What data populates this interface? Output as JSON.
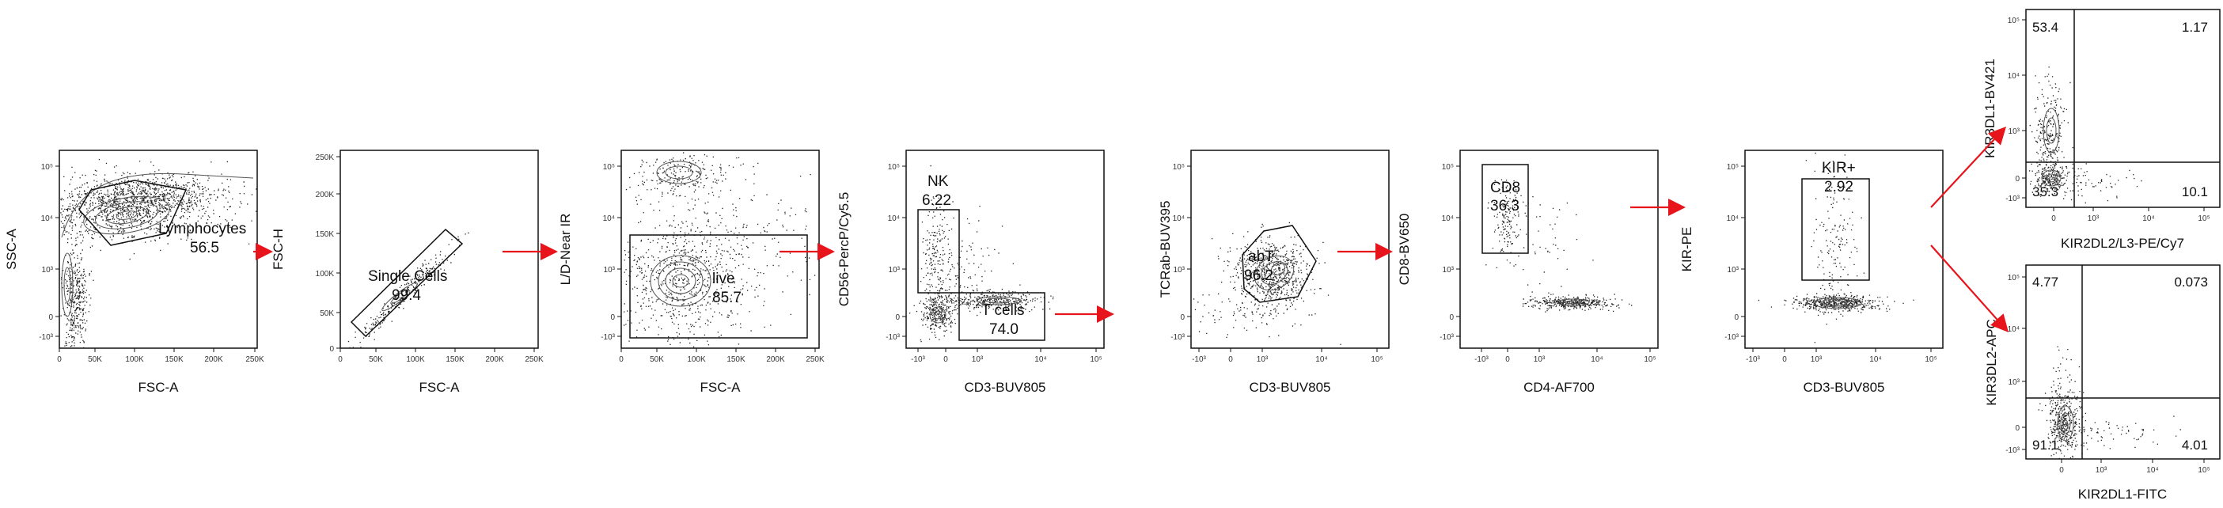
{
  "chart_data": [
    {
      "type": "scatter",
      "name": "lymphocytes",
      "xlabel": "FSC-A",
      "ylabel": "SSC-A",
      "x_ticks": [
        "0",
        "50K",
        "100K",
        "150K",
        "200K",
        "250K"
      ],
      "y_ticks": [
        "-10³",
        "0",
        "10³",
        "10⁴",
        "10⁵"
      ],
      "gates": [
        {
          "name": "Lymphocytes",
          "value": "56.5"
        }
      ]
    },
    {
      "type": "scatter",
      "name": "singlets",
      "xlabel": "FSC-A",
      "ylabel": "FSC-H",
      "x_ticks": [
        "0",
        "50K",
        "100K",
        "150K",
        "200K",
        "250K"
      ],
      "y_ticks": [
        "0",
        "50K",
        "100K",
        "150K",
        "200K",
        "250K"
      ],
      "gates": [
        {
          "name": "Single Cells",
          "value": "99.4"
        }
      ]
    },
    {
      "type": "scatter",
      "name": "live",
      "xlabel": "FSC-A",
      "ylabel": "L/D-Near IR",
      "x_ticks": [
        "0",
        "50K",
        "100K",
        "150K",
        "200K",
        "250K"
      ],
      "y_ticks": [
        "-10³",
        "0",
        "10³",
        "10⁴",
        "10⁵"
      ],
      "gates": [
        {
          "name": "live",
          "value": "85.7"
        }
      ]
    },
    {
      "type": "scatter",
      "name": "nk-tcells",
      "xlabel": "CD3-BUV805",
      "ylabel": "CD56-PercP/Cy5.5",
      "x_ticks": [
        "-10³",
        "0",
        "10³",
        "10⁴",
        "10⁵"
      ],
      "y_ticks": [
        "-10³",
        "0",
        "10³",
        "10⁴",
        "10⁵"
      ],
      "gates": [
        {
          "name": "NK",
          "value": "6.22"
        },
        {
          "name": "T cells",
          "value": "74.0"
        }
      ]
    },
    {
      "type": "scatter",
      "name": "abt",
      "xlabel": "CD3-BUV805",
      "ylabel": "TCRab-BUV395",
      "x_ticks": [
        "-10³",
        "0",
        "10³",
        "10⁴",
        "10⁵"
      ],
      "y_ticks": [
        "-10³",
        "0",
        "10³",
        "10⁴",
        "10⁵"
      ],
      "gates": [
        {
          "name": "abT",
          "value": "96.2"
        }
      ]
    },
    {
      "type": "scatter",
      "name": "cd8",
      "xlabel": "CD4-AF700",
      "ylabel": "CD8-BV650",
      "x_ticks": [
        "-10³",
        "0",
        "10³",
        "10⁴",
        "10⁵"
      ],
      "y_ticks": [
        "-10³",
        "0",
        "10³",
        "10⁴",
        "10⁵"
      ],
      "gates": [
        {
          "name": "CD8",
          "value": "36.3"
        }
      ]
    },
    {
      "type": "scatter",
      "name": "kir",
      "xlabel": "CD3-BUV805",
      "ylabel": "KIR-PE",
      "x_ticks": [
        "-10³",
        "0",
        "10³",
        "10⁴",
        "10⁵"
      ],
      "y_ticks": [
        "-10³",
        "0",
        "10³",
        "10⁴",
        "10⁵"
      ],
      "gates": [
        {
          "name": "KIR+",
          "value": "2.92"
        }
      ]
    },
    {
      "type": "scatter",
      "name": "kir3dl1",
      "xlabel": "KIR2DL2/L3-PE/Cy7",
      "ylabel": "KIR3DL1-BV421",
      "x_ticks": [
        "0",
        "10³",
        "10⁴",
        "10⁵"
      ],
      "y_ticks": [
        "-10³",
        "0",
        "10³",
        "10⁴",
        "10⁵"
      ],
      "quadrants": {
        "ul": "53.4",
        "ur": "1.17",
        "ll": "35.3",
        "lr": "10.1"
      }
    },
    {
      "type": "scatter",
      "name": "kir2dl2",
      "xlabel": "KIR2DL1-FITC",
      "ylabel": "KIR3DL2-APC",
      "x_ticks": [
        "0",
        "10³",
        "10⁴",
        "10⁵"
      ],
      "y_ticks": [
        "-10³",
        "0",
        "10³",
        "10⁴",
        "10⁵"
      ],
      "quadrants": {
        "ul": "4.77",
        "ur": "0.073",
        "ll": "91.1",
        "lr": "4.01"
      }
    }
  ],
  "colors": {
    "arrow": "#e8141b",
    "ink": "#111111",
    "contour": "#555555"
  }
}
